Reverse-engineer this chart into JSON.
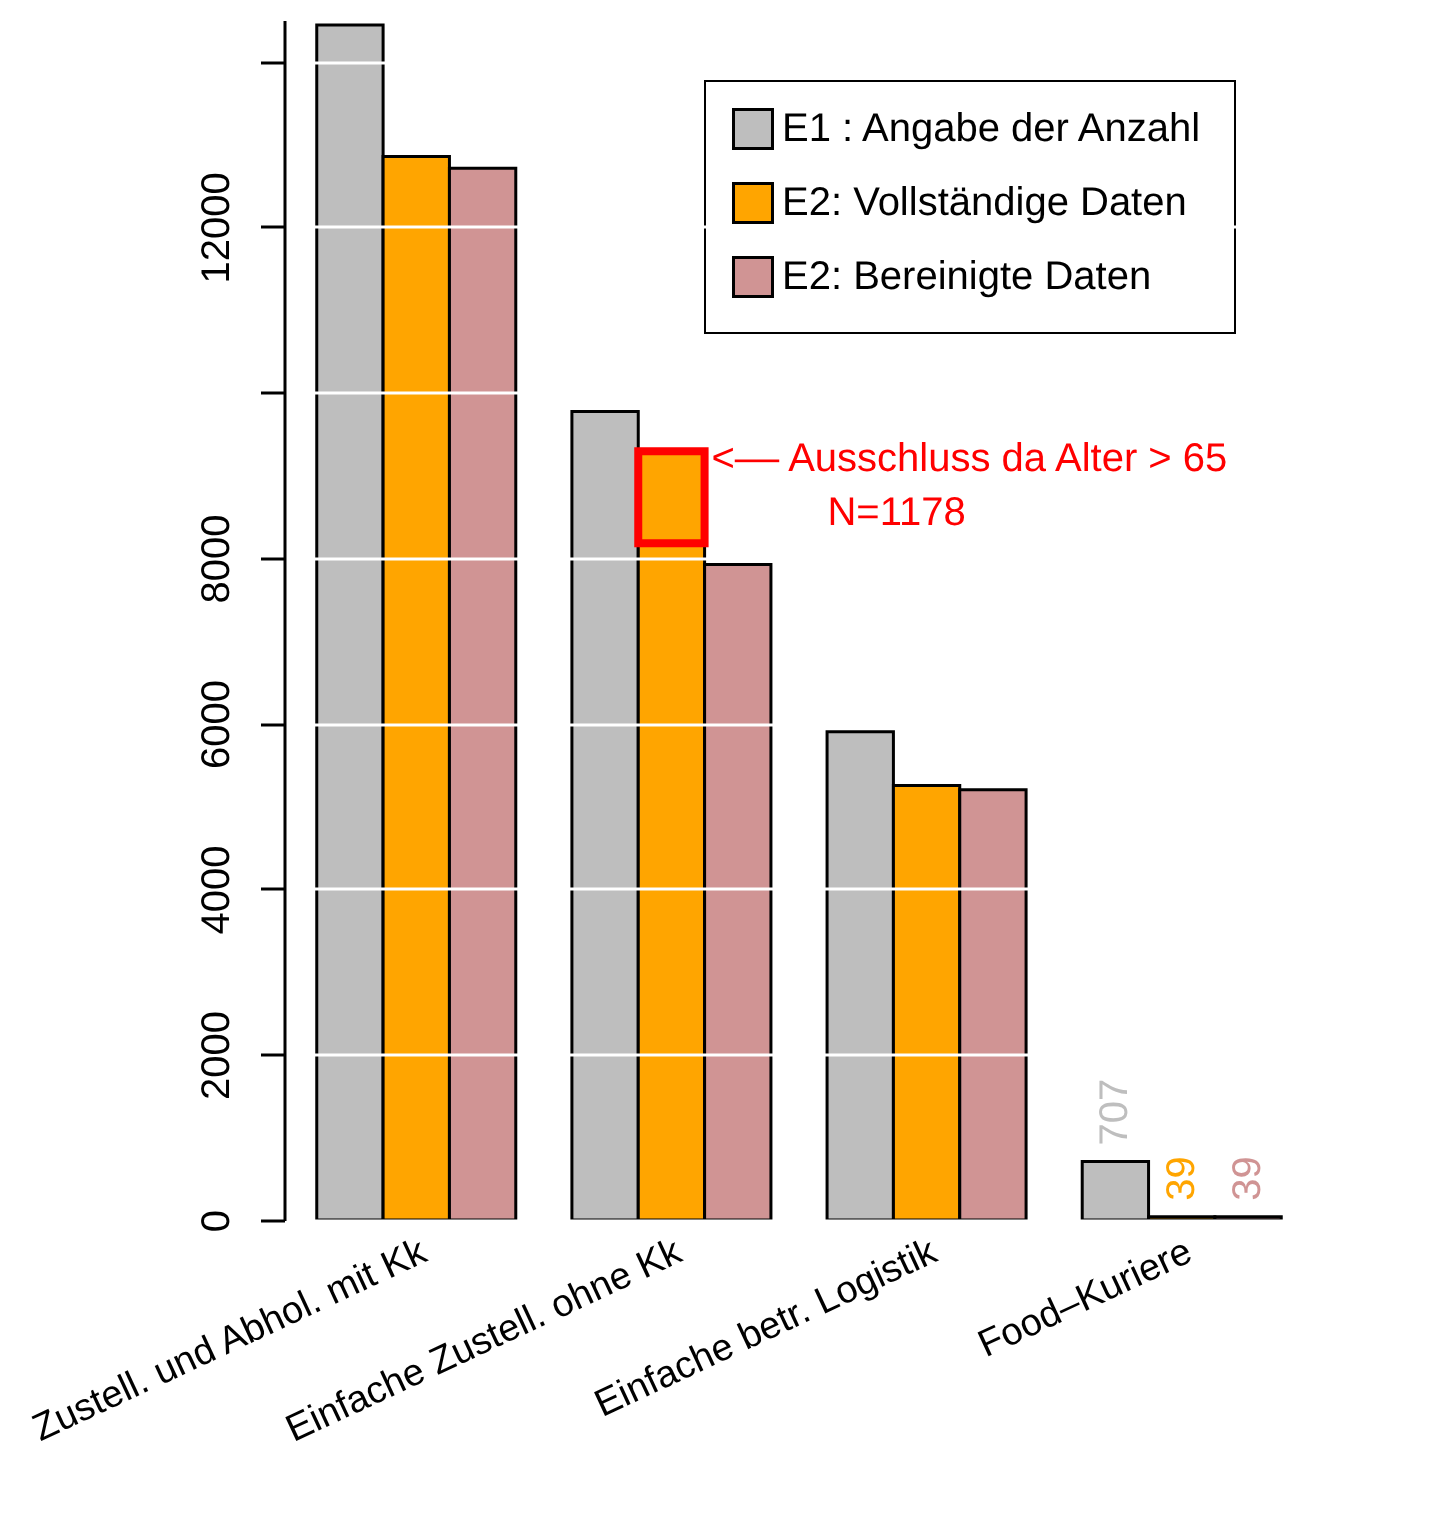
{
  "chart_data": {
    "type": "bar",
    "categories": [
      "Zustell. und Abhol. mit Kk",
      "Einfache Zustell. ohne Kk",
      "Einfache betr. Logistik",
      "Food–Kuriere"
    ],
    "series": [
      {
        "name": "E1 : Angabe der Anzahl",
        "color": "#bebebe",
        "values": [
          14440,
          9770,
          5900,
          707
        ],
        "value_labels": [
          null,
          null,
          null,
          "707"
        ]
      },
      {
        "name": "E2: Vollständige Daten",
        "color": "#ffa500",
        "values": [
          12850,
          9290,
          5250,
          39
        ],
        "value_labels": [
          null,
          null,
          null,
          "39"
        ]
      },
      {
        "name": "E2: Bereinigte Daten",
        "color": "#d09494",
        "values": [
          12710,
          7920,
          5200,
          39
        ],
        "value_labels": [
          null,
          null,
          null,
          "39"
        ]
      }
    ],
    "ylim": [
      0,
      14500
    ],
    "yticks": [
      0,
      2000,
      4000,
      6000,
      8000,
      {
        "value": 10000,
        "label": null
      },
      12000,
      {
        "value": 14000,
        "label": null
      }
    ],
    "grid": "y",
    "legend": "top right",
    "annotations": [
      {
        "text": "<–– Ausschluss da Alter > 65",
        "x": "Einfache Zustell. ohne Kk",
        "y": 9290
      },
      "N=1178"
    ]
  }
}
